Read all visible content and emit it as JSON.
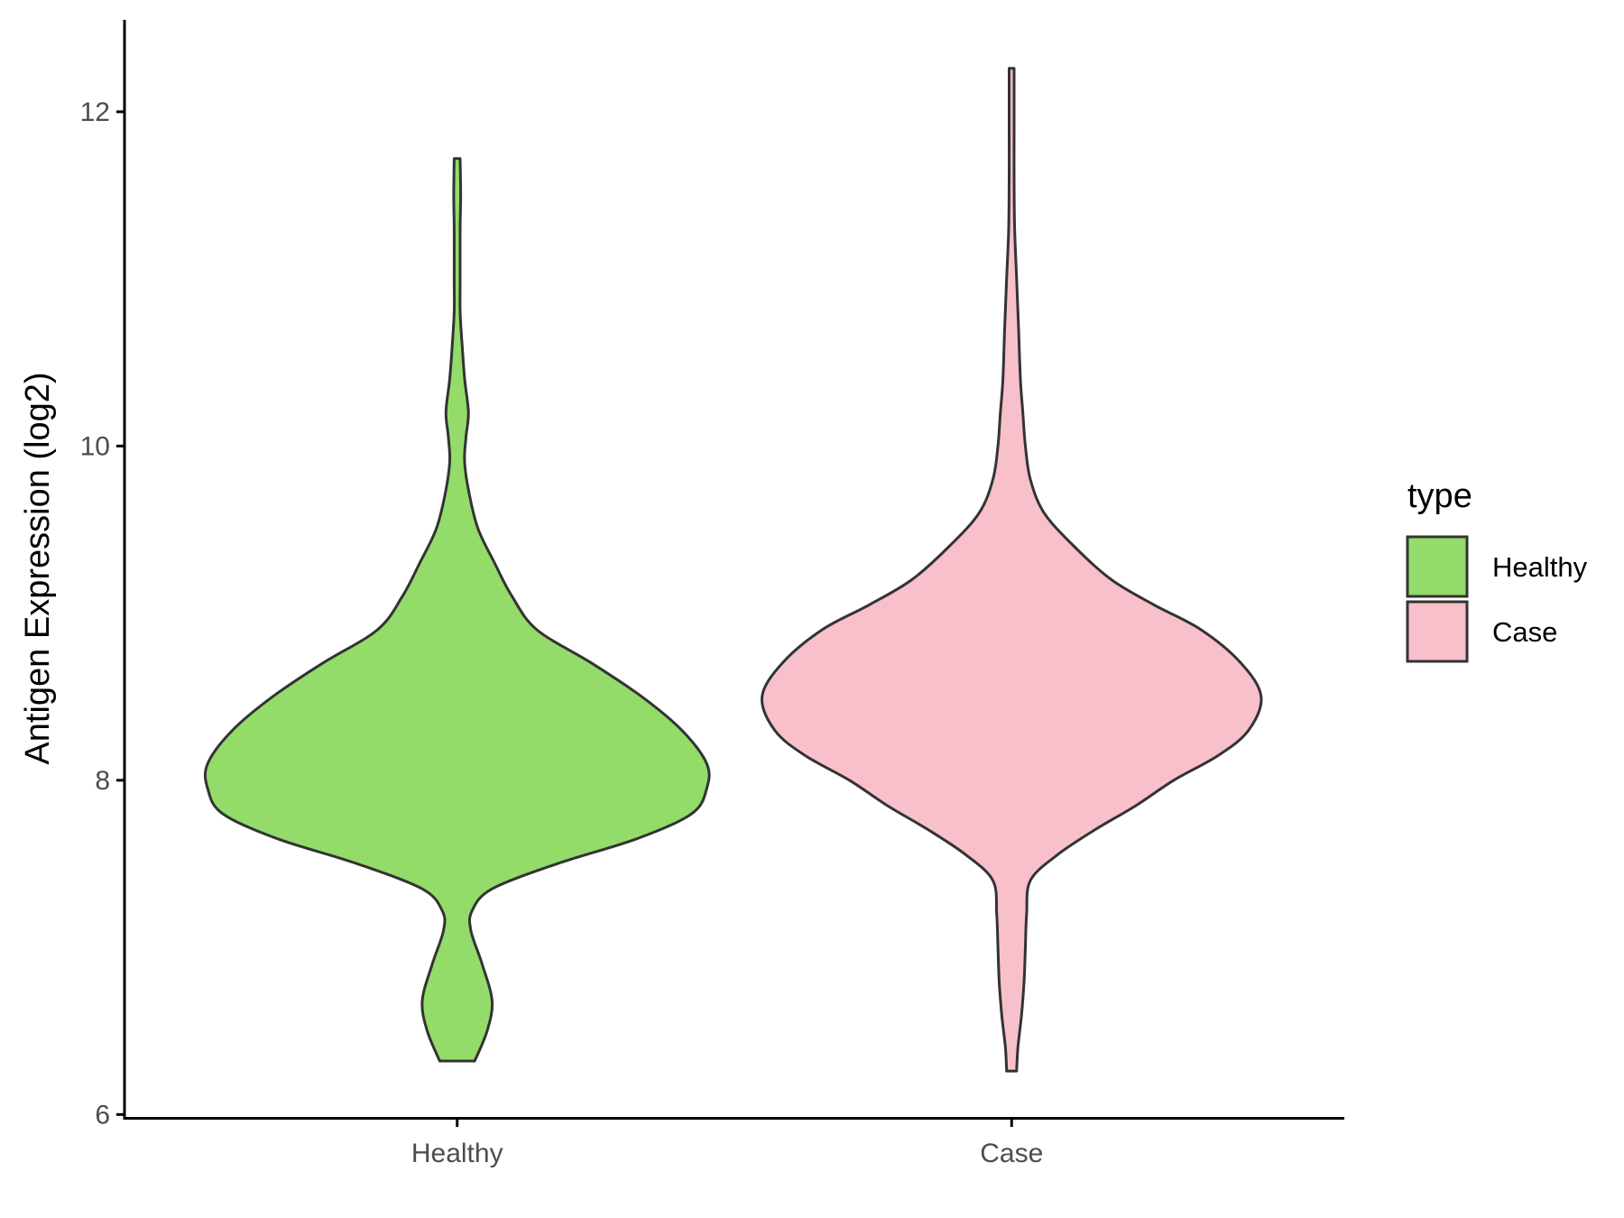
{
  "chart_data": {
    "type": "violin",
    "categories": [
      "Healthy",
      "Case"
    ],
    "ylabel": "Antigen Expression (log2)",
    "xlabel": "",
    "ylim": [
      5.98,
      12.55
    ],
    "yticks": [
      6,
      8,
      10,
      12
    ],
    "ytick_labels": [
      "6",
      "8",
      "10",
      "12"
    ],
    "grid": false,
    "legend": {
      "title": "type",
      "position": "right",
      "entries": [
        "Healthy",
        "Case"
      ]
    },
    "series": [
      {
        "name": "Healthy",
        "color": "#93dc6a",
        "min": 6.32,
        "max": 11.72,
        "density": [
          [
            6.32,
            0.07
          ],
          [
            6.5,
            0.12
          ],
          [
            6.68,
            0.14
          ],
          [
            6.9,
            0.1
          ],
          [
            7.1,
            0.055
          ],
          [
            7.22,
            0.06
          ],
          [
            7.35,
            0.14
          ],
          [
            7.5,
            0.4
          ],
          [
            7.65,
            0.72
          ],
          [
            7.8,
            0.94
          ],
          [
            7.95,
            1.0
          ],
          [
            8.1,
            1.0
          ],
          [
            8.3,
            0.9
          ],
          [
            8.5,
            0.74
          ],
          [
            8.7,
            0.54
          ],
          [
            8.9,
            0.32
          ],
          [
            9.1,
            0.22
          ],
          [
            9.3,
            0.15
          ],
          [
            9.5,
            0.085
          ],
          [
            9.7,
            0.05
          ],
          [
            9.9,
            0.03
          ],
          [
            10.05,
            0.035
          ],
          [
            10.2,
            0.045
          ],
          [
            10.4,
            0.03
          ],
          [
            10.6,
            0.02
          ],
          [
            10.8,
            0.012
          ],
          [
            11.0,
            0.012
          ],
          [
            11.3,
            0.012
          ],
          [
            11.5,
            0.014
          ],
          [
            11.72,
            0.012
          ]
        ]
      },
      {
        "name": "Case",
        "color": "#f8c0cb",
        "min": 6.26,
        "max": 12.26,
        "density": [
          [
            6.26,
            0.02
          ],
          [
            6.4,
            0.025
          ],
          [
            6.6,
            0.04
          ],
          [
            6.8,
            0.05
          ],
          [
            7.0,
            0.055
          ],
          [
            7.2,
            0.06
          ],
          [
            7.4,
            0.075
          ],
          [
            7.55,
            0.18
          ],
          [
            7.7,
            0.33
          ],
          [
            7.85,
            0.5
          ],
          [
            8.0,
            0.65
          ],
          [
            8.15,
            0.83
          ],
          [
            8.3,
            0.95
          ],
          [
            8.5,
            1.0
          ],
          [
            8.7,
            0.92
          ],
          [
            8.9,
            0.76
          ],
          [
            9.05,
            0.57
          ],
          [
            9.2,
            0.4
          ],
          [
            9.4,
            0.25
          ],
          [
            9.6,
            0.13
          ],
          [
            9.8,
            0.075
          ],
          [
            10.0,
            0.055
          ],
          [
            10.2,
            0.045
          ],
          [
            10.4,
            0.035
          ],
          [
            10.7,
            0.028
          ],
          [
            11.0,
            0.02
          ],
          [
            11.3,
            0.012
          ],
          [
            11.6,
            0.01
          ],
          [
            11.9,
            0.01
          ],
          [
            12.26,
            0.01
          ]
        ]
      }
    ]
  }
}
